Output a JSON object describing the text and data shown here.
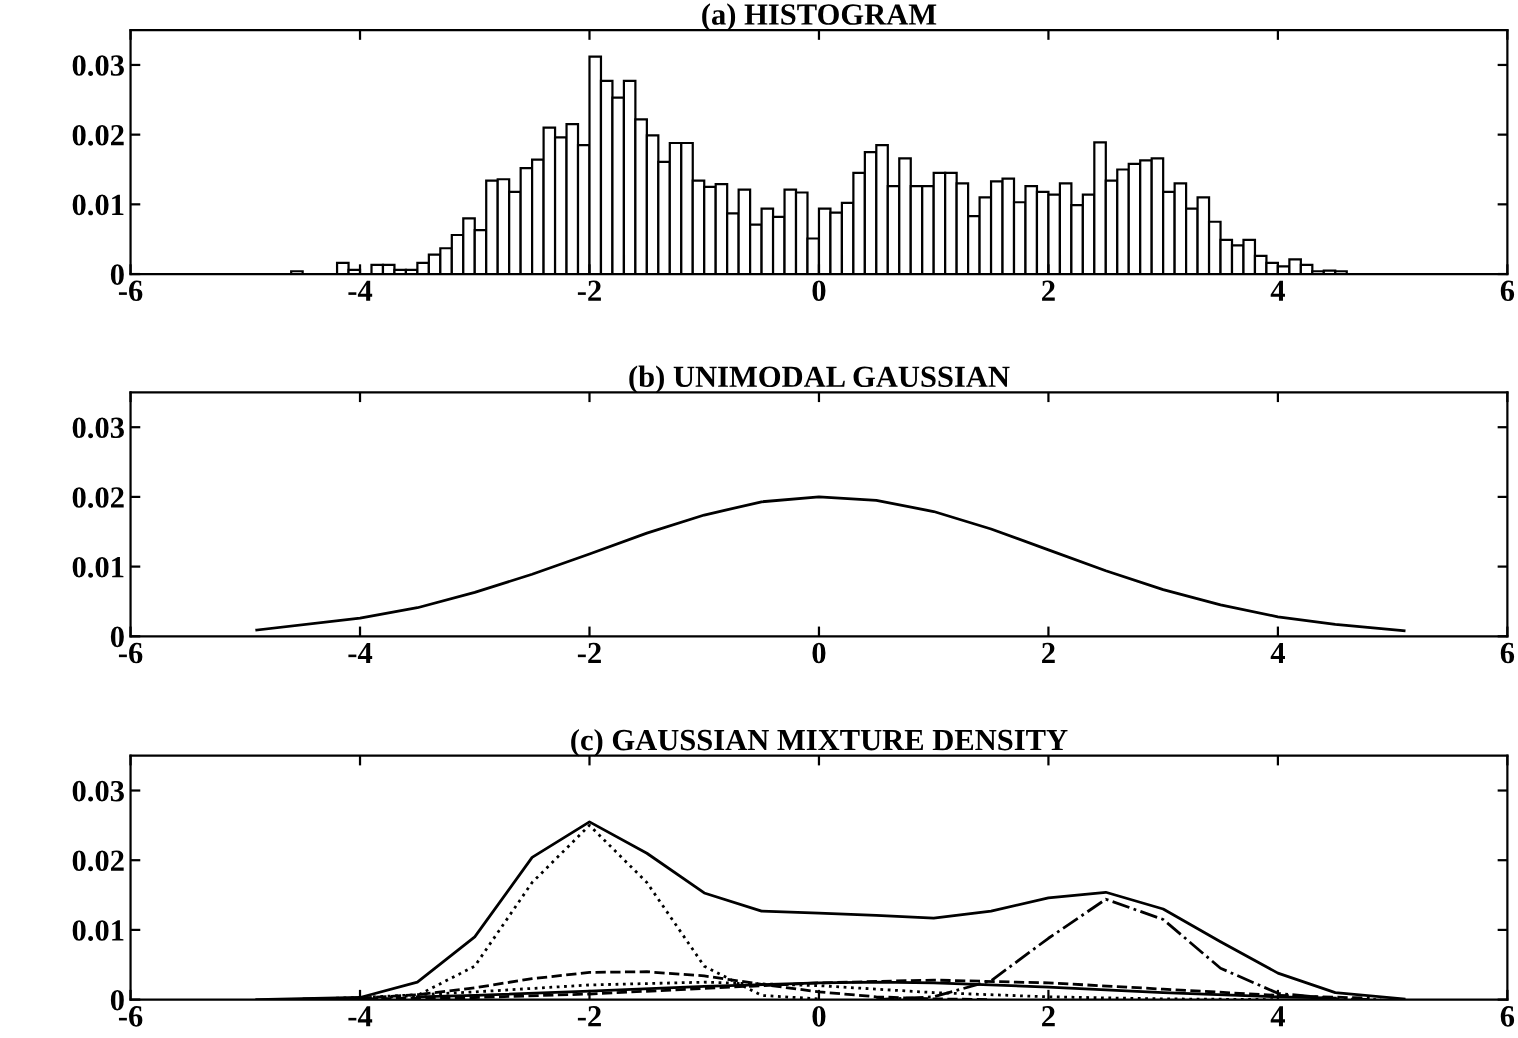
{
  "chart_data": [
    {
      "type": "histogram",
      "title": "(a) HISTOGRAM",
      "color": "#ffffff",
      "bins": [
        -4.9,
        -4.8,
        -4.7,
        -4.6,
        -4.5,
        -4.4,
        -4.3,
        -4.2,
        -4.1,
        -4.0,
        -3.9,
        -3.8,
        -3.7,
        -3.6,
        -3.5,
        -3.4,
        -3.3,
        -3.2,
        -3.1,
        -3.0,
        -2.9,
        -2.8,
        -2.7,
        -2.6,
        -2.5,
        -2.4,
        -2.3,
        -2.2,
        -2.1,
        -2.0,
        -1.9,
        -1.8,
        -1.7,
        -1.6,
        -1.5,
        -1.4,
        -1.3,
        -1.2,
        -1.1,
        -1.0,
        -0.9,
        -0.8,
        -0.7,
        -0.6,
        -0.5,
        -0.4,
        -0.3,
        -0.2,
        -0.1,
        0.0,
        0.1,
        0.2,
        0.3,
        0.4,
        0.5,
        0.6,
        0.7,
        0.8,
        0.9,
        1.0,
        1.1,
        1.2,
        1.3,
        1.4,
        1.5,
        1.6,
        1.7,
        1.8,
        1.9,
        2.0,
        2.1,
        2.2,
        2.3,
        2.4,
        2.5,
        2.6,
        2.7,
        2.8,
        2.9,
        3.0,
        3.1,
        3.2,
        3.3,
        3.4,
        3.5,
        3.6,
        3.7,
        3.8,
        3.9,
        4.0,
        4.1,
        4.2,
        4.3,
        4.4,
        4.5,
        4.6,
        4.7,
        4.8,
        4.9,
        5.0,
        5.1
      ],
      "values": [
        0,
        0,
        0,
        0.0004,
        0,
        0,
        0,
        0.0016,
        0.0006,
        0,
        0.0013,
        0.0013,
        0.0006,
        0.0006,
        0.0016,
        0.0028,
        0.0037,
        0.0056,
        0.008,
        0.0063,
        0.0134,
        0.0136,
        0.0118,
        0.0152,
        0.0164,
        0.021,
        0.0196,
        0.0215,
        0.0185,
        0.0312,
        0.0277,
        0.0253,
        0.0277,
        0.0222,
        0.0199,
        0.0161,
        0.0188,
        0.0188,
        0.0134,
        0.0125,
        0.0129,
        0.0087,
        0.0121,
        0.0071,
        0.0094,
        0.0082,
        0.0121,
        0.0117,
        0.0051,
        0.0094,
        0.0088,
        0.0102,
        0.0145,
        0.0175,
        0.0185,
        0.0126,
        0.0166,
        0.0126,
        0.0126,
        0.0145,
        0.0145,
        0.013,
        0.0083,
        0.011,
        0.0133,
        0.0137,
        0.0103,
        0.0126,
        0.0118,
        0.0114,
        0.013,
        0.0099,
        0.0114,
        0.0189,
        0.0134,
        0.015,
        0.0158,
        0.0163,
        0.0166,
        0.0118,
        0.013,
        0.0094,
        0.011,
        0.0075,
        0.0049,
        0.0041,
        0.0049,
        0.0026,
        0.0016,
        0.0011,
        0.0021,
        0.0013,
        0.0004,
        0.0005,
        0.0004,
        0,
        0,
        0,
        0,
        0
      ],
      "xlim": [
        -6,
        6
      ],
      "xticks": [
        -6,
        -4,
        -2,
        0,
        2,
        4,
        6
      ],
      "ylim": [
        0,
        0.035
      ],
      "yticks": [
        0,
        0.01,
        0.02,
        0.03
      ],
      "grid": false
    },
    {
      "type": "line",
      "title": "(b) UNIMODAL GAUSSIAN",
      "line_style": "solid",
      "series": [
        {
          "color": "#000000",
          "x": [
            -4.9,
            -4,
            -3.5,
            -3,
            -2.5,
            -2,
            -1.5,
            -1,
            -0.5,
            0,
            0.5,
            1,
            1.5,
            2,
            2.5,
            3,
            3.5,
            4,
            4.5,
            5.1
          ],
          "values": [
            0.0009,
            0.0026,
            0.0041,
            0.0063,
            0.0089,
            0.0118,
            0.0148,
            0.0174,
            0.0193,
            0.02,
            0.0195,
            0.0179,
            0.0154,
            0.0124,
            0.0094,
            0.0067,
            0.0045,
            0.0028,
            0.0017,
            0.0008
          ]
        }
      ],
      "xlim": [
        -6,
        6
      ],
      "xticks": [
        -6,
        -4,
        -2,
        0,
        2,
        4,
        6
      ],
      "ylim": [
        0,
        0.035
      ],
      "yticks": [
        0,
        0.01,
        0.02,
        0.03
      ],
      "grid": false
    },
    {
      "type": "line",
      "title": "(c) GAUSSIAN MIXTURE DENSITY",
      "series": [
        {
          "color": "#000000",
          "line_style": "solid",
          "x": [
            -4.9,
            -4,
            -3.5,
            -3,
            -2.5,
            -2,
            -1.5,
            -1,
            -0.5,
            0,
            0.5,
            1,
            1.5,
            2,
            2.5,
            3,
            3.5,
            4,
            4.5,
            5.1
          ],
          "values": [
            0,
            0.0003,
            0.0025,
            0.009,
            0.0204,
            0.0255,
            0.021,
            0.0153,
            0.0127,
            0.0124,
            0.0121,
            0.0117,
            0.0127,
            0.0146,
            0.0154,
            0.013,
            0.0083,
            0.0038,
            0.001,
            0.0001
          ]
        },
        {
          "color": "#000000",
          "line_style": "dotted",
          "x": [
            -4.7,
            -4,
            -3.5,
            -3,
            -2.5,
            -2,
            -1.5,
            -1,
            -0.5,
            0
          ],
          "values": [
            0,
            0.0001,
            0.0006,
            0.0048,
            0.0168,
            0.025,
            0.0168,
            0.0048,
            0.0006,
            0.0001
          ]
        },
        {
          "color": "#000000",
          "line_style": "dashdot",
          "x": [
            0.5,
            1,
            1.5,
            2,
            2.5,
            3,
            3.5,
            4,
            4.5,
            4.9
          ],
          "values": [
            0,
            0.0004,
            0.0027,
            0.0088,
            0.0144,
            0.0115,
            0.0045,
            0.0009,
            0.0001,
            0
          ]
        },
        {
          "color": "#000000",
          "line_style": "dashed",
          "x": [
            -4.5,
            -4,
            -3.5,
            -3,
            -2.5,
            -2,
            -1.5,
            -1,
            -0.5,
            0,
            0.5,
            1,
            1.5
          ],
          "values": [
            0.0001,
            0.0002,
            0.0007,
            0.0017,
            0.003,
            0.0039,
            0.004,
            0.0034,
            0.0022,
            0.0011,
            0.0004,
            0.0001,
            0
          ]
        },
        {
          "color": "#000000",
          "line_style": "dotted",
          "x": [
            -4.4,
            -4,
            -3,
            -2,
            -1,
            0,
            1,
            2,
            3,
            4
          ],
          "values": [
            0.0001,
            0.0003,
            0.0011,
            0.0021,
            0.0025,
            0.002,
            0.001,
            0.0004,
            0.0001,
            0
          ]
        },
        {
          "color": "#000000",
          "line_style": "solid",
          "x": [
            -3.5,
            -3,
            -2,
            -1,
            0,
            0.5,
            1,
            2,
            3,
            4,
            4.5
          ],
          "values": [
            0.0004,
            0.0006,
            0.0012,
            0.0019,
            0.0024,
            0.0025,
            0.0024,
            0.0018,
            0.001,
            0.0004,
            0.0002
          ]
        },
        {
          "color": "#000000",
          "line_style": "dashed",
          "x": [
            -4.2,
            -4,
            -3,
            -2,
            -1,
            0,
            1,
            2,
            3,
            4,
            4.8
          ],
          "values": [
            0,
            0.0001,
            0.0003,
            0.0008,
            0.0016,
            0.0024,
            0.0028,
            0.0024,
            0.0015,
            0.0006,
            0.0002
          ]
        }
      ],
      "xlim": [
        -6,
        6
      ],
      "xticks": [
        -6,
        -4,
        -2,
        0,
        2,
        4,
        6
      ],
      "ylim": [
        0,
        0.035
      ],
      "yticks": [
        0,
        0.01,
        0.02,
        0.03
      ],
      "grid": false
    }
  ]
}
